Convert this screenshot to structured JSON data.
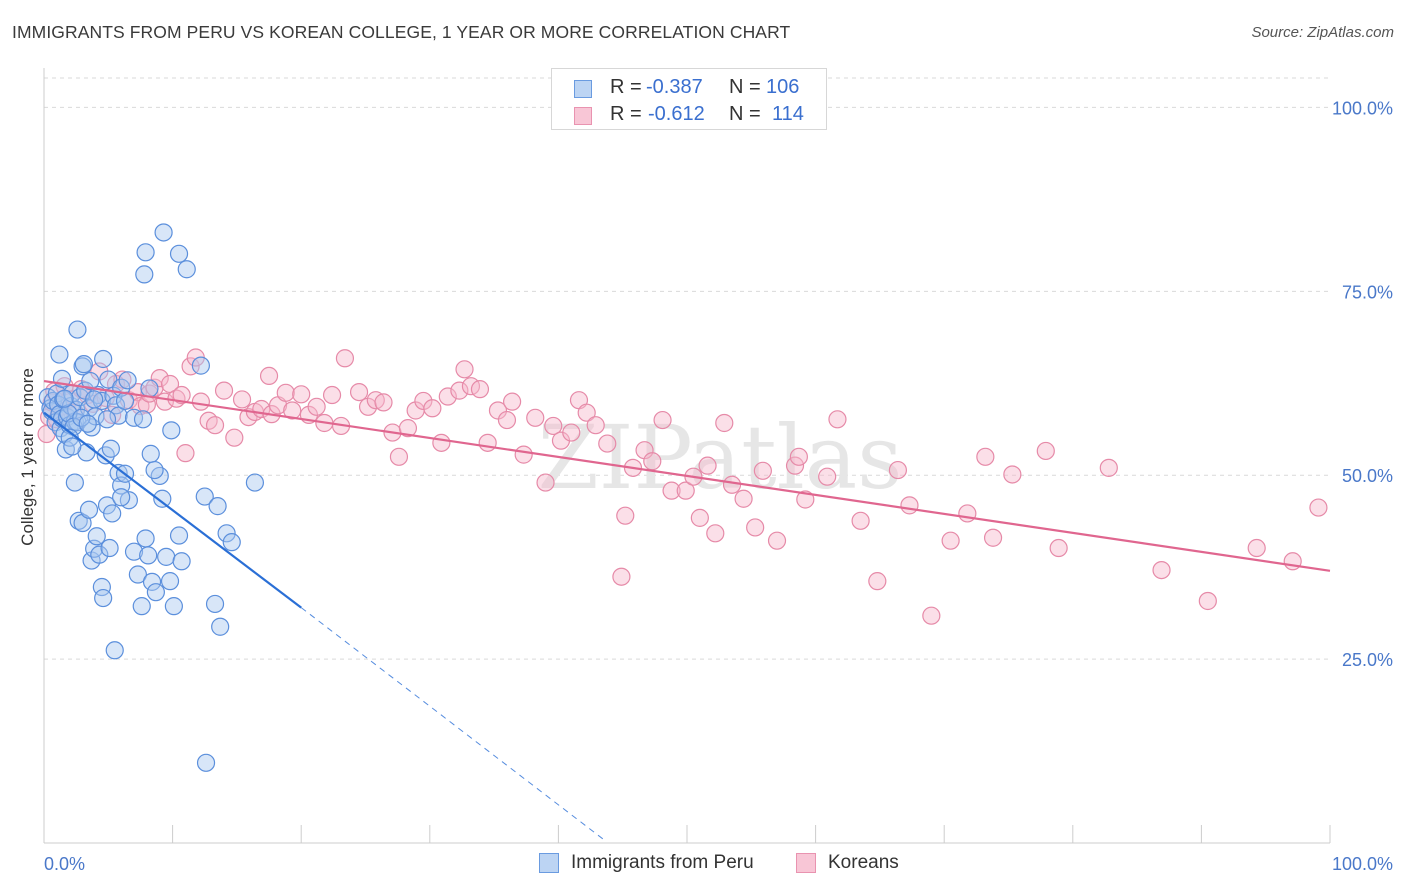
{
  "title": "IMMIGRANTS FROM PERU VS KOREAN COLLEGE, 1 YEAR OR MORE CORRELATION CHART",
  "source": "Source: ZipAtlas.com",
  "watermark": "ZIPatlas",
  "legend": {
    "rows": [
      {
        "r_label": "R =",
        "r_value": "-0.387",
        "n_label": "N =",
        "n_value": "106"
      },
      {
        "r_label": "R =",
        "r_value": "-0.612",
        "n_label": "N =",
        "n_value": "114"
      }
    ]
  },
  "colors": {
    "peru_fill": "#a9c7f0",
    "peru_stroke": "#5b8fdc",
    "peru_line": "#2a6fd6",
    "korean_fill": "#f6b8cc",
    "korean_stroke": "#e68aa8",
    "korean_line": "#e0668f",
    "tick_label": "#4a78c9",
    "grid": "#d9d9d9"
  },
  "chart_data": {
    "type": "scatter",
    "title": "IMMIGRANTS FROM PERU VS KOREAN COLLEGE, 1 YEAR OR MORE CORRELATION CHART",
    "xlabel": "",
    "ylabel": "College, 1 year or more",
    "xlim": [
      0,
      100
    ],
    "ylim": [
      0,
      104
    ],
    "x_tick_labels": [
      "0.0%",
      "100.0%"
    ],
    "y_ticks": [
      25,
      50,
      75,
      100
    ],
    "y_tick_labels": [
      "25.0%",
      "50.0%",
      "75.0%",
      "100.0%"
    ],
    "grid": true,
    "legend_position": "top-center",
    "series": [
      {
        "name": "Immigrants from Peru",
        "r": -0.387,
        "n": 106,
        "trend": {
          "x0": 0.0,
          "y0": 58.5,
          "x1": 20.0,
          "y1": 32.0,
          "dashed_to_x": 43.5,
          "dashed_to_y": 0.5
        },
        "points": [
          [
            0.3,
            60.6
          ],
          [
            0.5,
            59.1
          ],
          [
            0.6,
            58.7
          ],
          [
            0.7,
            60.1
          ],
          [
            0.9,
            57.2
          ],
          [
            1.0,
            61.1
          ],
          [
            1.1,
            59.6
          ],
          [
            1.2,
            58.3
          ],
          [
            1.3,
            56.4
          ],
          [
            1.4,
            57.7
          ],
          [
            1.5,
            60.3
          ],
          [
            1.6,
            55.6
          ],
          [
            1.7,
            53.5
          ],
          [
            1.8,
            57.9
          ],
          [
            2.0,
            56.8
          ],
          [
            2.1,
            59.4
          ],
          [
            2.2,
            61.1
          ],
          [
            2.4,
            57.3
          ],
          [
            2.5,
            58.9
          ],
          [
            2.6,
            57.2
          ],
          [
            2.8,
            60.6
          ],
          [
            3.0,
            64.8
          ],
          [
            3.2,
            61.5
          ],
          [
            3.5,
            59.1
          ],
          [
            3.7,
            56.5
          ],
          [
            4.0,
            58.0
          ],
          [
            4.2,
            60.9
          ],
          [
            4.5,
            60.1
          ],
          [
            3.1,
            65.1
          ],
          [
            1.2,
            66.4
          ],
          [
            1.4,
            63.1
          ],
          [
            2.6,
            69.8
          ],
          [
            3.6,
            62.8
          ],
          [
            4.6,
            65.8
          ],
          [
            5.0,
            63.0
          ],
          [
            5.4,
            60.8
          ],
          [
            5.6,
            59.5
          ],
          [
            5.8,
            58.1
          ],
          [
            6.0,
            61.9
          ],
          [
            6.3,
            60.1
          ],
          [
            6.5,
            62.9
          ],
          [
            7.0,
            57.8
          ],
          [
            4.9,
            57.6
          ],
          [
            2.4,
            49.0
          ],
          [
            2.7,
            43.8
          ],
          [
            3.0,
            43.5
          ],
          [
            3.3,
            53.1
          ],
          [
            3.5,
            45.3
          ],
          [
            3.7,
            38.4
          ],
          [
            3.9,
            40.0
          ],
          [
            4.1,
            41.7
          ],
          [
            4.3,
            39.2
          ],
          [
            4.5,
            34.8
          ],
          [
            4.6,
            33.3
          ],
          [
            4.9,
            45.9
          ],
          [
            5.1,
            40.1
          ],
          [
            5.3,
            44.8
          ],
          [
            5.5,
            26.2
          ],
          [
            5.8,
            50.3
          ],
          [
            6.0,
            48.6
          ],
          [
            6.3,
            50.2
          ],
          [
            6.6,
            46.6
          ],
          [
            7.0,
            39.6
          ],
          [
            7.3,
            36.5
          ],
          [
            7.6,
            32.2
          ],
          [
            7.9,
            41.4
          ],
          [
            8.1,
            39.1
          ],
          [
            8.4,
            35.5
          ],
          [
            8.7,
            34.1
          ],
          [
            9.0,
            49.9
          ],
          [
            9.2,
            46.8
          ],
          [
            9.5,
            38.9
          ],
          [
            9.8,
            35.6
          ],
          [
            10.1,
            32.2
          ],
          [
            10.5,
            41.8
          ],
          [
            10.7,
            38.3
          ],
          [
            8.3,
            52.9
          ],
          [
            8.6,
            50.7
          ],
          [
            7.7,
            57.6
          ],
          [
            8.2,
            61.8
          ],
          [
            9.9,
            56.1
          ],
          [
            12.5,
            47.1
          ],
          [
            12.2,
            64.9
          ],
          [
            13.3,
            32.5
          ],
          [
            13.7,
            29.4
          ],
          [
            13.5,
            45.8
          ],
          [
            14.2,
            42.1
          ],
          [
            14.6,
            40.9
          ],
          [
            16.4,
            49.0
          ],
          [
            12.6,
            10.9
          ],
          [
            7.9,
            80.3
          ],
          [
            10.5,
            80.1
          ],
          [
            11.1,
            78.0
          ],
          [
            7.8,
            77.3
          ],
          [
            9.3,
            83.0
          ],
          [
            3.9,
            60.3
          ],
          [
            4.8,
            52.7
          ],
          [
            5.2,
            53.6
          ],
          [
            1.9,
            58.4
          ],
          [
            2.3,
            56.6
          ],
          [
            2.9,
            57.8
          ],
          [
            1.6,
            60.4
          ],
          [
            2.0,
            55.1
          ],
          [
            2.2,
            53.9
          ],
          [
            3.4,
            57.0
          ],
          [
            6.0,
            47.0
          ]
        ]
      },
      {
        "name": "Koreans",
        "r": -0.612,
        "n": 114,
        "trend": {
          "x0": 0.0,
          "y0": 62.8,
          "x1": 100.0,
          "y1": 37.0
        },
        "points": [
          [
            0.2,
            55.6
          ],
          [
            0.4,
            57.9
          ],
          [
            0.6,
            59.9
          ],
          [
            0.8,
            61.4
          ],
          [
            1.0,
            57.6
          ],
          [
            1.3,
            59.3
          ],
          [
            1.6,
            62.1
          ],
          [
            2.0,
            60.3
          ],
          [
            2.4,
            58.5
          ],
          [
            2.9,
            61.7
          ],
          [
            3.4,
            60.9
          ],
          [
            3.8,
            59.7
          ],
          [
            4.3,
            64.1
          ],
          [
            4.8,
            60.5
          ],
          [
            5.3,
            58.2
          ],
          [
            5.6,
            62.4
          ],
          [
            6.1,
            63.0
          ],
          [
            6.6,
            60.2
          ],
          [
            7.3,
            61.3
          ],
          [
            7.5,
            59.4
          ],
          [
            8.0,
            59.6
          ],
          [
            8.2,
            61.1
          ],
          [
            8.6,
            61.9
          ],
          [
            9.0,
            63.2
          ],
          [
            9.4,
            60.0
          ],
          [
            9.8,
            62.4
          ],
          [
            10.3,
            60.4
          ],
          [
            10.7,
            60.9
          ],
          [
            11.0,
            53.0
          ],
          [
            11.4,
            64.8
          ],
          [
            11.8,
            66.0
          ],
          [
            12.2,
            60.0
          ],
          [
            12.8,
            57.4
          ],
          [
            13.3,
            56.8
          ],
          [
            14.0,
            61.5
          ],
          [
            14.8,
            55.1
          ],
          [
            15.4,
            60.3
          ],
          [
            15.9,
            57.9
          ],
          [
            16.4,
            58.6
          ],
          [
            16.9,
            59.0
          ],
          [
            17.5,
            63.5
          ],
          [
            17.7,
            58.3
          ],
          [
            18.2,
            59.5
          ],
          [
            18.8,
            61.2
          ],
          [
            19.3,
            58.8
          ],
          [
            20.0,
            61.0
          ],
          [
            20.6,
            58.2
          ],
          [
            21.2,
            59.3
          ],
          [
            21.8,
            57.1
          ],
          [
            22.4,
            60.9
          ],
          [
            23.1,
            56.7
          ],
          [
            23.4,
            65.9
          ],
          [
            24.5,
            61.3
          ],
          [
            25.2,
            59.3
          ],
          [
            25.8,
            60.2
          ],
          [
            26.4,
            59.9
          ],
          [
            27.1,
            55.8
          ],
          [
            27.6,
            52.5
          ],
          [
            28.3,
            56.4
          ],
          [
            28.9,
            58.8
          ],
          [
            29.5,
            60.1
          ],
          [
            30.2,
            59.1
          ],
          [
            30.9,
            54.4
          ],
          [
            31.4,
            60.7
          ],
          [
            32.3,
            61.5
          ],
          [
            32.7,
            64.4
          ],
          [
            33.2,
            62.1
          ],
          [
            33.9,
            61.7
          ],
          [
            34.5,
            54.4
          ],
          [
            35.3,
            58.8
          ],
          [
            36.0,
            57.5
          ],
          [
            36.4,
            60.0
          ],
          [
            37.3,
            52.8
          ],
          [
            38.2,
            57.8
          ],
          [
            39.0,
            49.0
          ],
          [
            39.6,
            56.7
          ],
          [
            40.2,
            54.7
          ],
          [
            41.0,
            55.8
          ],
          [
            41.6,
            60.2
          ],
          [
            42.2,
            58.5
          ],
          [
            42.9,
            56.8
          ],
          [
            43.8,
            54.3
          ],
          [
            44.9,
            36.2
          ],
          [
            45.2,
            44.5
          ],
          [
            45.8,
            51.0
          ],
          [
            46.7,
            53.4
          ],
          [
            47.3,
            51.9
          ],
          [
            48.1,
            57.5
          ],
          [
            48.8,
            47.9
          ],
          [
            49.9,
            47.9
          ],
          [
            50.5,
            49.8
          ],
          [
            51.0,
            44.2
          ],
          [
            51.6,
            51.3
          ],
          [
            52.2,
            42.1
          ],
          [
            52.9,
            57.1
          ],
          [
            53.5,
            48.7
          ],
          [
            54.4,
            46.8
          ],
          [
            55.3,
            42.9
          ],
          [
            55.9,
            50.6
          ],
          [
            57.0,
            41.1
          ],
          [
            58.4,
            51.3
          ],
          [
            58.7,
            52.5
          ],
          [
            59.2,
            46.7
          ],
          [
            60.9,
            49.8
          ],
          [
            61.7,
            57.6
          ],
          [
            63.5,
            43.8
          ],
          [
            64.8,
            35.6
          ],
          [
            66.4,
            50.7
          ],
          [
            67.3,
            45.9
          ],
          [
            69.0,
            30.9
          ],
          [
            70.5,
            41.1
          ],
          [
            71.8,
            44.8
          ],
          [
            73.2,
            52.5
          ],
          [
            73.8,
            41.5
          ],
          [
            75.3,
            50.1
          ],
          [
            77.9,
            53.3
          ],
          [
            78.9,
            40.1
          ],
          [
            82.8,
            51.0
          ],
          [
            86.9,
            37.1
          ],
          [
            90.5,
            32.9
          ],
          [
            94.3,
            40.1
          ],
          [
            97.1,
            38.3
          ],
          [
            99.1,
            45.6
          ]
        ]
      }
    ]
  },
  "bottom_legend": [
    "Immigrants from Peru",
    "Koreans"
  ]
}
